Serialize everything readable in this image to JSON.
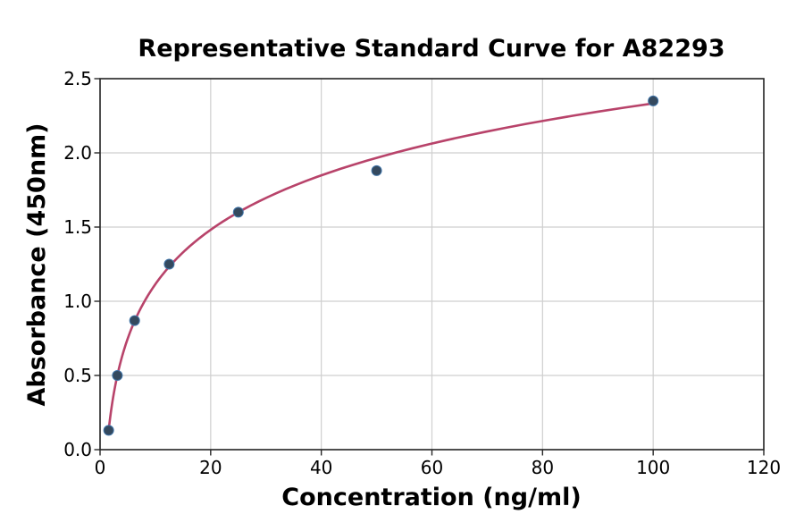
{
  "chart_data": {
    "type": "scatter",
    "title": "Representative Standard Curve for A82293",
    "xlabel": "Concentration (ng/ml)",
    "ylabel": "Absorbance (450nm)",
    "xlim": [
      0,
      120
    ],
    "ylim": [
      0,
      2.5
    ],
    "x_ticks": [
      0,
      20,
      40,
      60,
      80,
      100,
      120
    ],
    "x_tick_labels": [
      "0",
      "20",
      "40",
      "60",
      "80",
      "100",
      "120"
    ],
    "y_ticks": [
      0,
      0.5,
      1.0,
      1.5,
      2.0,
      2.5
    ],
    "y_tick_labels": [
      "0.0",
      "0.5",
      "1.0",
      "1.5",
      "2.0",
      "2.5"
    ],
    "grid": true,
    "legend": "none",
    "points": [
      {
        "x": 1.56,
        "y": 0.13
      },
      {
        "x": 3.13,
        "y": 0.5
      },
      {
        "x": 6.25,
        "y": 0.87
      },
      {
        "x": 12.5,
        "y": 1.25
      },
      {
        "x": 25,
        "y": 1.6
      },
      {
        "x": 50,
        "y": 1.88
      },
      {
        "x": 100,
        "y": 2.35
      }
    ],
    "fit_curve": {
      "type": "logarithmic",
      "equation": "y = a + b*ln(x)",
      "a": -0.103,
      "b": 0.529,
      "x_start": 1.56,
      "x_end": 100
    },
    "colors": {
      "curve": "#b8436a",
      "marker_fill": "#34495e",
      "marker_edge": "#3f74a8",
      "grid": "#cfcfcf",
      "axis": "#262626",
      "text": "#000000",
      "background": "#ffffff"
    }
  }
}
